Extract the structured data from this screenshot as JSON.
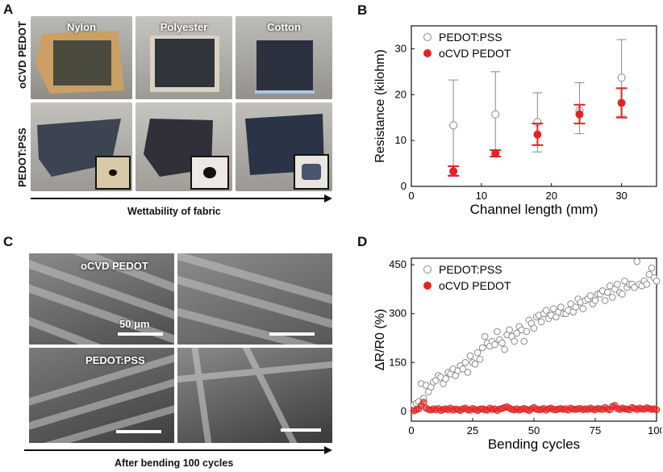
{
  "panels": {
    "a": "A",
    "b": "B",
    "c": "C",
    "d": "D"
  },
  "panel_a": {
    "columns": [
      "Nylon",
      "Polyester",
      "Cotton"
    ],
    "rows": [
      "oCVD PEDOT",
      "PEDOT:PSS"
    ],
    "caption": "Wettability of fabric"
  },
  "panel_c": {
    "label_top": "oCVD PEDOT",
    "label_bottom": "PEDOT:PSS",
    "scale": "50 μm",
    "caption": "After bending 100 cycles"
  },
  "chart_data": [
    {
      "type": "scatter",
      "xlabel": "Channel length (mm)",
      "ylabel": "Resistance (kilohm)",
      "xlim": [
        0,
        35
      ],
      "ylim": [
        0,
        35
      ],
      "xticks": [
        0,
        10,
        20,
        30
      ],
      "yticks": [
        0,
        10,
        20,
        30
      ],
      "legend_position": "top-left",
      "series": [
        {
          "name": "PEDOT:PSS",
          "color": "#8a8a8a",
          "marker": "open-circle",
          "x": [
            6,
            12,
            18,
            24,
            30
          ],
          "y": [
            13.3,
            15.7,
            14.0,
            16.5,
            23.7
          ],
          "err_low": [
            2.5,
            6.5,
            7.5,
            11.5,
            15.3
          ],
          "err_high": [
            23.2,
            25.0,
            20.4,
            22.6,
            32.0
          ]
        },
        {
          "name": "oCVD PEDOT",
          "color": "#e32222",
          "marker": "filled-circle",
          "x": [
            6,
            12,
            18,
            24,
            30
          ],
          "y": [
            3.3,
            7.2,
            11.3,
            15.7,
            18.2
          ],
          "err_low": [
            2.3,
            6.5,
            9.0,
            13.7,
            15.0
          ],
          "err_high": [
            4.4,
            7.9,
            13.7,
            17.8,
            21.4
          ]
        }
      ]
    },
    {
      "type": "scatter",
      "xlabel": "Bending cycles",
      "ylabel": "ΔR/R0 (%)",
      "xlim": [
        0,
        100
      ],
      "ylim": [
        -30,
        470
      ],
      "xticks": [
        0,
        25,
        50,
        75,
        100
      ],
      "yticks": [
        0,
        150,
        300,
        450
      ],
      "legend_position": "top-left",
      "series": [
        {
          "name": "PEDOT:PSS",
          "color": "#8a8a8a",
          "marker": "open-circle",
          "x": [
            1,
            2,
            3,
            4,
            5,
            6,
            7,
            8,
            9,
            10,
            11,
            12,
            13,
            14,
            15,
            16,
            17,
            18,
            19,
            20,
            21,
            22,
            23,
            24,
            25,
            26,
            27,
            28,
            29,
            30,
            31,
            32,
            33,
            34,
            35,
            36,
            37,
            38,
            39,
            40,
            41,
            42,
            43,
            44,
            45,
            46,
            47,
            48,
            49,
            50,
            51,
            52,
            53,
            54,
            55,
            56,
            57,
            58,
            59,
            60,
            61,
            62,
            63,
            64,
            65,
            66,
            67,
            68,
            69,
            70,
            71,
            72,
            73,
            74,
            75,
            76,
            77,
            78,
            79,
            80,
            81,
            82,
            83,
            84,
            85,
            86,
            87,
            88,
            89,
            90,
            91,
            92,
            93,
            94,
            95,
            96,
            97,
            98,
            99,
            100
          ],
          "y": [
            20,
            25,
            30,
            85,
            40,
            80,
            60,
            75,
            90,
            95,
            110,
            105,
            85,
            100,
            120,
            115,
            130,
            110,
            125,
            140,
            130,
            150,
            120,
            170,
            150,
            145,
            180,
            160,
            195,
            230,
            210,
            200,
            215,
            205,
            245,
            220,
            210,
            190,
            235,
            250,
            230,
            215,
            240,
            260,
            250,
            215,
            245,
            280,
            270,
            255,
            290,
            295,
            275,
            300,
            310,
            285,
            295,
            315,
            290,
            305,
            320,
            300,
            300,
            310,
            330,
            305,
            320,
            345,
            335,
            315,
            340,
            345,
            355,
            330,
            340,
            360,
            360,
            370,
            340,
            365,
            385,
            350,
            375,
            390,
            365,
            360,
            400,
            380,
            390,
            390,
            380,
            460,
            390,
            385,
            400,
            390,
            420,
            440,
            410,
            400
          ]
        },
        {
          "name": "oCVD PEDOT",
          "color": "#e32222",
          "marker": "filled-circle",
          "x": [
            1,
            2,
            3,
            4,
            5,
            6,
            7,
            8,
            9,
            10,
            11,
            12,
            13,
            14,
            15,
            16,
            17,
            18,
            19,
            20,
            21,
            22,
            23,
            24,
            25,
            26,
            27,
            28,
            29,
            30,
            31,
            32,
            33,
            34,
            35,
            36,
            37,
            38,
            39,
            40,
            41,
            42,
            43,
            44,
            45,
            46,
            47,
            48,
            49,
            50,
            51,
            52,
            53,
            54,
            55,
            56,
            57,
            58,
            59,
            60,
            61,
            62,
            63,
            64,
            65,
            66,
            67,
            68,
            69,
            70,
            71,
            72,
            73,
            74,
            75,
            76,
            77,
            78,
            79,
            80,
            81,
            82,
            83,
            84,
            85,
            86,
            87,
            88,
            89,
            90,
            91,
            92,
            93,
            94,
            95,
            96,
            97,
            98,
            99,
            100
          ],
          "y": [
            2,
            5,
            8,
            18,
            28,
            10,
            6,
            4,
            8,
            5,
            9,
            3,
            6,
            8,
            5,
            10,
            4,
            7,
            6,
            3,
            8,
            10,
            5,
            4,
            9,
            6,
            3,
            7,
            8,
            5,
            4,
            10,
            6,
            8,
            3,
            7,
            9,
            12,
            14,
            10,
            6,
            5,
            8,
            4,
            7,
            9,
            6,
            3,
            8,
            12,
            7,
            5,
            6,
            9,
            4,
            8,
            10,
            6,
            5,
            7,
            9,
            6,
            8,
            4,
            10,
            7,
            6,
            8,
            9,
            5,
            8,
            6,
            10,
            7,
            5,
            9,
            8,
            6,
            12,
            7,
            5,
            15,
            18,
            9,
            6,
            10,
            8,
            7,
            5,
            12,
            9,
            6,
            10,
            8,
            7,
            11,
            9,
            6,
            8,
            5
          ]
        }
      ]
    }
  ]
}
